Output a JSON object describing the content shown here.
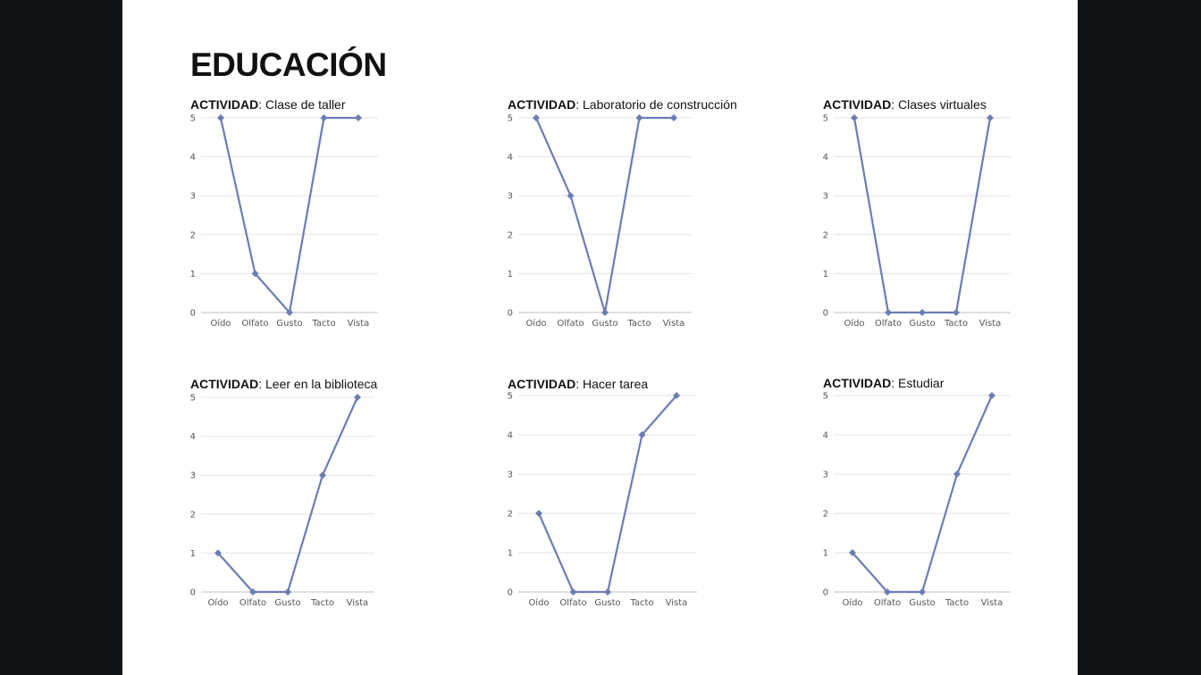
{
  "page": {
    "title": "EDUCACIÓN"
  },
  "chart_data": [
    {
      "type": "line",
      "title_label": "ACTIVIDAD",
      "title_text": ": Clase de taller",
      "categories": [
        "Oído",
        "Olfato",
        "Gusto",
        "Tacto",
        "Vista"
      ],
      "values": [
        5,
        1,
        0,
        5,
        5
      ],
      "ylim": [
        0,
        5
      ],
      "yticks": [
        "0",
        "1",
        "2",
        "3",
        "4",
        "5"
      ],
      "grid": true,
      "legend": "none",
      "color": "#6b7db3"
    },
    {
      "type": "line",
      "title_label": "ACTIVIDAD",
      "title_text": ": Laboratorio de construcción",
      "categories": [
        "Oído",
        "Olfato",
        "Gusto",
        "Tacto",
        "Vista"
      ],
      "values": [
        5,
        3,
        0,
        5,
        5
      ],
      "ylim": [
        0,
        5
      ],
      "yticks": [
        "0",
        "1",
        "2",
        "3",
        "4",
        "5"
      ],
      "grid": true,
      "legend": "none",
      "color": "#6b7db3"
    },
    {
      "type": "line",
      "title_label": "ACTIVIDAD",
      "title_text": ": Clases virtuales",
      "categories": [
        "Oído",
        "Olfato",
        "Gusto",
        "Tacto",
        "Vista"
      ],
      "values": [
        5,
        0,
        0,
        0,
        5
      ],
      "ylim": [
        0,
        5
      ],
      "yticks": [
        "0",
        "1",
        "2",
        "3",
        "4",
        "5"
      ],
      "grid": true,
      "legend": "none",
      "color": "#6b7db3"
    },
    {
      "type": "line",
      "title_label": "ACTIVIDAD",
      "title_text": ": Leer en la biblioteca",
      "categories": [
        "Oído",
        "Olfato",
        "Gusto",
        "Tacto",
        "Vista"
      ],
      "values": [
        1,
        0,
        0,
        3,
        5
      ],
      "ylim": [
        0,
        5
      ],
      "yticks": [
        "0",
        "1",
        "2",
        "3",
        "4",
        "5"
      ],
      "grid": true,
      "legend": "none",
      "color": "#6b7db3"
    },
    {
      "type": "line",
      "title_label": "ACTIVIDAD",
      "title_text": ": Hacer tarea",
      "categories": [
        "Oído",
        "Olfato",
        "Gusto",
        "Tacto",
        "Vista"
      ],
      "values": [
        2,
        0,
        0,
        4,
        5
      ],
      "ylim": [
        0,
        5
      ],
      "yticks": [
        "0",
        "1",
        "2",
        "3",
        "4",
        "5"
      ],
      "grid": true,
      "legend": "none",
      "color": "#6b7db3"
    },
    {
      "type": "line",
      "title_label": "ACTIVIDAD",
      "title_text": ": Estudiar",
      "categories": [
        "Oído",
        "Olfato",
        "Gusto",
        "Tacto",
        "Vista"
      ],
      "values": [
        1,
        0,
        0,
        3,
        5
      ],
      "ylim": [
        0,
        5
      ],
      "yticks": [
        "0",
        "1",
        "2",
        "3",
        "4",
        "5"
      ],
      "grid": true,
      "legend": "none",
      "color": "#6b7db3"
    }
  ]
}
